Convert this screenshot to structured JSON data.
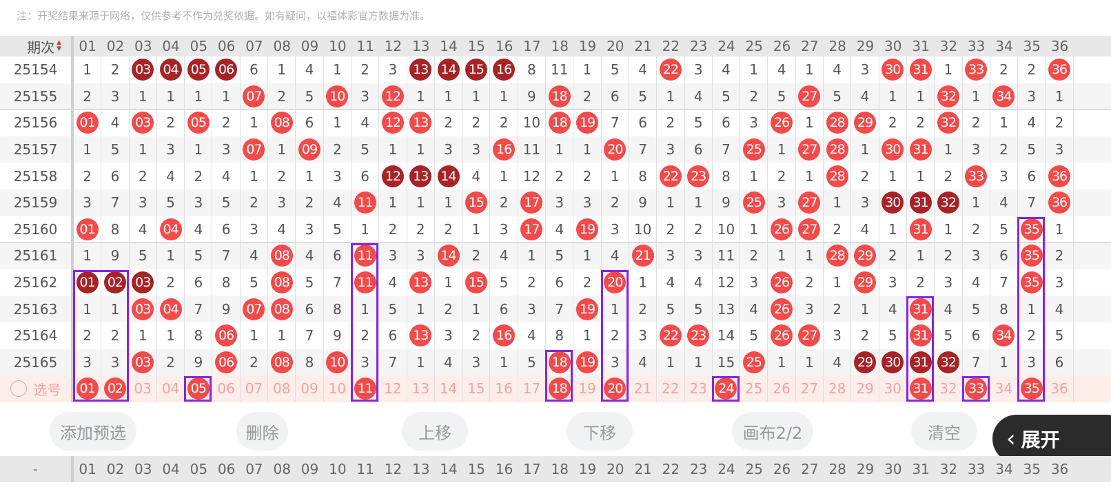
{
  "note": "注：开奖结果来源于网络，仅供参考不作为兑奖依据。如有疑问，以福体彩官方数据为准。",
  "header": {
    "label": "期次",
    "sort_up": "▲",
    "sort_down": "▼"
  },
  "columns": [
    "01",
    "02",
    "03",
    "04",
    "05",
    "06",
    "07",
    "08",
    "09",
    "10",
    "11",
    "12",
    "13",
    "14",
    "15",
    "16",
    "17",
    "18",
    "19",
    "20",
    "21",
    "22",
    "23",
    "24",
    "25",
    "26",
    "27",
    "28",
    "29",
    "30",
    "31",
    "32",
    "33",
    "34",
    "35",
    "36"
  ],
  "colors": {
    "ball": "#f44a4a",
    "ball_dark": "#a72326",
    "box": "#8b22e6",
    "select_row": "#fdeee9"
  },
  "rows": [
    {
      "issue": "25154",
      "cells": [
        "1",
        "2",
        "03",
        "04",
        "05",
        "06",
        "6",
        "1",
        "4",
        "1",
        "2",
        "3",
        "13",
        "14",
        "15",
        "16",
        "8",
        "11",
        "1",
        "5",
        "4",
        "22",
        "3",
        "4",
        "1",
        "4",
        "1",
        "4",
        "3",
        "30",
        "31",
        "1",
        "33",
        "2",
        "2",
        "36"
      ],
      "dark": [
        3,
        4,
        5,
        6,
        13,
        14,
        15,
        16
      ]
    },
    {
      "issue": "25155",
      "cells": [
        "2",
        "3",
        "1",
        "1",
        "1",
        "1",
        "07",
        "2",
        "5",
        "10",
        "3",
        "12",
        "1",
        "1",
        "1",
        "1",
        "9",
        "18",
        "2",
        "6",
        "5",
        "1",
        "4",
        "5",
        "2",
        "5",
        "27",
        "5",
        "4",
        "1",
        "1",
        "32",
        "1",
        "34",
        "3",
        "1"
      ],
      "dark": []
    },
    {
      "issue": "25156",
      "cells": [
        "01",
        "4",
        "03",
        "2",
        "05",
        "2",
        "1",
        "08",
        "6",
        "1",
        "4",
        "12",
        "13",
        "2",
        "2",
        "2",
        "10",
        "18",
        "19",
        "7",
        "6",
        "2",
        "5",
        "6",
        "3",
        "26",
        "1",
        "28",
        "29",
        "2",
        "2",
        "32",
        "2",
        "1",
        "4",
        "2"
      ],
      "dark": []
    },
    {
      "issue": "25157",
      "cells": [
        "1",
        "5",
        "1",
        "3",
        "1",
        "3",
        "07",
        "1",
        "09",
        "2",
        "5",
        "1",
        "1",
        "3",
        "3",
        "16",
        "11",
        "1",
        "1",
        "20",
        "7",
        "3",
        "6",
        "7",
        "25",
        "1",
        "27",
        "28",
        "1",
        "30",
        "31",
        "1",
        "3",
        "2",
        "5",
        "3"
      ],
      "dark": []
    },
    {
      "issue": "25158",
      "cells": [
        "2",
        "6",
        "2",
        "4",
        "2",
        "4",
        "1",
        "2",
        "1",
        "3",
        "6",
        "12",
        "13",
        "14",
        "4",
        "1",
        "12",
        "2",
        "2",
        "1",
        "8",
        "22",
        "23",
        "8",
        "1",
        "2",
        "1",
        "28",
        "2",
        "1",
        "1",
        "2",
        "33",
        "3",
        "6",
        "36"
      ],
      "dark": [
        12,
        13,
        14
      ]
    },
    {
      "issue": "25159",
      "cells": [
        "3",
        "7",
        "3",
        "5",
        "3",
        "5",
        "2",
        "3",
        "2",
        "4",
        "11",
        "1",
        "1",
        "1",
        "15",
        "2",
        "17",
        "3",
        "3",
        "2",
        "9",
        "1",
        "1",
        "9",
        "25",
        "3",
        "27",
        "1",
        "3",
        "30",
        "31",
        "32",
        "1",
        "4",
        "7",
        "36"
      ],
      "dark": [
        30,
        31,
        32
      ]
    },
    {
      "issue": "25160",
      "cells": [
        "01",
        "8",
        "4",
        "04",
        "4",
        "6",
        "3",
        "4",
        "3",
        "5",
        "1",
        "2",
        "2",
        "2",
        "1",
        "3",
        "17",
        "4",
        "19",
        "3",
        "10",
        "2",
        "2",
        "10",
        "1",
        "26",
        "27",
        "2",
        "4",
        "1",
        "31",
        "1",
        "2",
        "5",
        "35",
        "1"
      ],
      "dark": []
    },
    {
      "issue": "25161",
      "cells": [
        "1",
        "9",
        "5",
        "1",
        "5",
        "7",
        "4",
        "08",
        "4",
        "6",
        "11",
        "3",
        "3",
        "14",
        "2",
        "4",
        "1",
        "5",
        "1",
        "4",
        "21",
        "3",
        "3",
        "11",
        "2",
        "1",
        "1",
        "28",
        "29",
        "2",
        "1",
        "2",
        "3",
        "6",
        "35",
        "2"
      ],
      "dark": []
    },
    {
      "issue": "25162",
      "cells": [
        "01",
        "02",
        "03",
        "2",
        "6",
        "8",
        "5",
        "08",
        "5",
        "7",
        "11",
        "4",
        "13",
        "1",
        "15",
        "5",
        "2",
        "6",
        "2",
        "20",
        "1",
        "4",
        "4",
        "12",
        "3",
        "26",
        "2",
        "1",
        "29",
        "3",
        "2",
        "3",
        "4",
        "7",
        "35",
        "3"
      ],
      "dark": [
        1,
        2,
        3
      ]
    },
    {
      "issue": "25163",
      "cells": [
        "1",
        "1",
        "03",
        "04",
        "7",
        "9",
        "07",
        "08",
        "6",
        "8",
        "1",
        "5",
        "1",
        "2",
        "1",
        "6",
        "3",
        "7",
        "19",
        "1",
        "2",
        "5",
        "5",
        "13",
        "4",
        "26",
        "3",
        "2",
        "1",
        "4",
        "31",
        "4",
        "5",
        "8",
        "1",
        "4"
      ],
      "dark": []
    },
    {
      "issue": "25164",
      "cells": [
        "2",
        "2",
        "1",
        "1",
        "8",
        "06",
        "1",
        "1",
        "7",
        "9",
        "2",
        "6",
        "13",
        "3",
        "2",
        "16",
        "4",
        "8",
        "1",
        "2",
        "3",
        "22",
        "23",
        "14",
        "5",
        "26",
        "27",
        "3",
        "2",
        "5",
        "31",
        "5",
        "6",
        "34",
        "2",
        "5"
      ],
      "dark": []
    },
    {
      "issue": "25165",
      "cells": [
        "3",
        "3",
        "03",
        "2",
        "9",
        "06",
        "2",
        "08",
        "8",
        "10",
        "3",
        "7",
        "1",
        "4",
        "3",
        "1",
        "5",
        "18",
        "19",
        "3",
        "4",
        "1",
        "1",
        "15",
        "25",
        "1",
        "1",
        "4",
        "29",
        "30",
        "31",
        "32",
        "7",
        "1",
        "3",
        "6"
      ],
      "dark": [
        29,
        30,
        31,
        32
      ]
    }
  ],
  "select_row": {
    "label": "选号",
    "selected": [
      1,
      2,
      5,
      11,
      18,
      20,
      24,
      31,
      33,
      35
    ]
  },
  "boxes": [
    {
      "cols": [
        1,
        2
      ],
      "from": "25162"
    },
    {
      "cols": [
        5
      ],
      "from": "select"
    },
    {
      "cols": [
        11
      ],
      "from": "25161"
    },
    {
      "cols": [
        18
      ],
      "from": "25165"
    },
    {
      "cols": [
        20
      ],
      "from": "25162"
    },
    {
      "cols": [
        24
      ],
      "from": "select"
    },
    {
      "cols": [
        31
      ],
      "from": "25163"
    },
    {
      "cols": [
        33
      ],
      "from": "select"
    },
    {
      "cols": [
        35
      ],
      "from": "25160"
    }
  ],
  "buttons": {
    "add": "添加预选",
    "delete": "删除",
    "up": "上移",
    "down": "下移",
    "canvas": "画布2/2",
    "clear": "清空",
    "expand": "展开"
  },
  "footer": {
    "label": "-"
  }
}
